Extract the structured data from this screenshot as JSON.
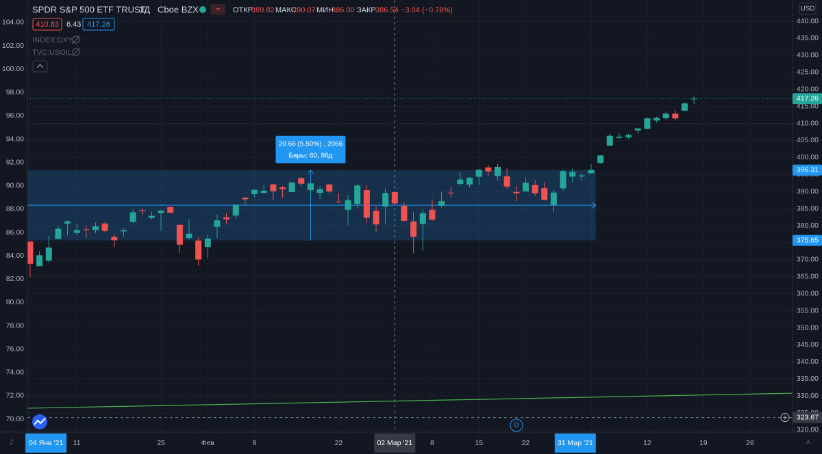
{
  "header": {
    "title": "SPDR S&P 500 ETF TRUST",
    "interval": "1Д",
    "exchange": "Cboe BZX",
    "open_label": "ОТКР",
    "open": "389.82",
    "high_label": "МАКС",
    "high": "390.07",
    "low_label": "МИН",
    "low": "386.00",
    "close_label": "ЗАКР",
    "close": "386.54",
    "change": "−3.04 (−0.78%)",
    "bid": "410.83",
    "spread": "6.43",
    "ask": "417.26",
    "hidden_1": "INDEX:DXY",
    "hidden_2": "TVC:USOIL",
    "currency": "USD",
    "marker": "D",
    "left_corner": "Z",
    "right_corner": "A"
  },
  "chart_data": {
    "type": "candlestick",
    "up_color": "#26a69a",
    "down_color": "#ef5350",
    "open": [
      375.3,
      368.1,
      369.7,
      376.1,
      380.6,
      377.85,
      378.9,
      378.7,
      380.6,
      376.7,
      378.3,
      381.1,
      384.5,
      382.25,
      383.67,
      385.41,
      380.22,
      376.36,
      375.63,
      373.72,
      379.65,
      382.44,
      382.96,
      388.2,
      389.27,
      389.61,
      392.12,
      391.24,
      389.85,
      393.96,
      390.42,
      389.59,
      392.07,
      387.06,
      384.66,
      386.33,
      390.41,
      384.35,
      385.59,
      389.82,
      385.79,
      381.22,
      380.46,
      384.66,
      385.85,
      389.69,
      392.23,
      392.07,
      394.33,
      397.07,
      394.53,
      394.48,
      389.88,
      390.03,
      391.91,
      391.0,
      385.98,
      390.93,
      394.4,
      394.42,
      395.34,
      398.4,
      403.46,
      405.76,
      405.94,
      407.93,
      408.39,
      410.85,
      411.53,
      412.83,
      413.74,
      417.25
    ],
    "high": [
      375.45,
      372.5,
      376.98,
      379.9,
      381.5,
      380.6,
      379.86,
      380.86,
      381.13,
      377.6,
      379.2,
      384.8,
      384.95,
      384.13,
      384.77,
      385.85,
      380.32,
      381.93,
      376.67,
      377.34,
      383.22,
      383.7,
      386.24,
      388.47,
      390.56,
      391.89,
      392.28,
      391.69,
      392.9,
      394.17,
      392.66,
      391.52,
      392.38,
      389.62,
      388.95,
      392.23,
      391.88,
      385.58,
      390.92,
      390.07,
      386.83,
      384.0,
      384.76,
      387.68,
      389.91,
      391.4,
      395.65,
      394.21,
      396.69,
      397.83,
      398.12,
      396.72,
      391.57,
      394.07,
      393.46,
      392.75,
      390.55,
      396.41,
      396.75,
      395.45,
      398.0,
      400.67,
      406.94,
      407.24,
      406.96,
      408.58,
      411.67,
      411.93,
      413.53,
      413.96,
      416.16,
      417.91
    ],
    "low": [
      364.8,
      368.05,
      369.1,
      375.9,
      377.1,
      377.1,
      376.36,
      377.85,
      378.1,
      373.7,
      376.75,
      380.7,
      383.25,
      381.84,
      378.46,
      383.54,
      372.01,
      375.89,
      368.27,
      370.38,
      376.32,
      380.48,
      381.97,
      386.14,
      388.35,
      389.42,
      387.5,
      388.1,
      389.77,
      391.53,
      389.33,
      387.74,
      389.55,
      386.74,
      380.2,
      385.27,
      380.78,
      378.23,
      380.57,
      386.0,
      381.31,
      371.88,
      372.64,
      381.42,
      385.31,
      388.17,
      391.74,
      391.2,
      392.03,
      394.5,
      393.3,
      390.75,
      387.15,
      389.97,
      388.66,
      387.47,
      383.9,
      390.29,
      392.81,
      393.02,
      395.31,
      398.18,
      403.38,
      405.4,
      405.45,
      406.93,
      408.26,
      410.2,
      411.12,
      410.87,
      413.69,
      415.73
    ],
    "close": [
      368.8,
      371.3,
      373.55,
      379.1,
      381.26,
      378.69,
      378.77,
      379.79,
      378.46,
      375.7,
      378.65,
      383.89,
      384.24,
      382.88,
      384.39,
      383.79,
      374.41,
      377.63,
      370.07,
      376.23,
      381.55,
      381.85,
      386.19,
      387.71,
      390.51,
      390.25,
      390.08,
      390.71,
      392.64,
      392.3,
      392.39,
      390.72,
      390.03,
      387.03,
      387.5,
      391.77,
      382.33,
      380.36,
      389.58,
      386.54,
      381.42,
      376.7,
      383.63,
      381.72,
      387.17,
      389.58,
      393.53,
      394.06,
      396.41,
      395.91,
      397.26,
      391.48,
      389.48,
      392.59,
      389.5,
      387.52,
      389.7,
      395.98,
      395.78,
      394.73,
      396.33,
      400.61,
      406.36,
      406.12,
      406.59,
      408.52,
      411.49,
      411.64,
      412.86,
      411.45,
      415.87,
      417.26
    ],
    "xlim": [
      -0.29,
      81.54
    ],
    "xticks": [
      {
        "value": 0,
        "label": "04 Янв '21"
      },
      {
        "value": 5,
        "label": "11"
      },
      {
        "value": 14,
        "label": "25"
      },
      {
        "value": 19,
        "label": "Фев"
      },
      {
        "value": 24,
        "label": "8"
      },
      {
        "value": 33,
        "label": "22"
      },
      {
        "value": 43,
        "label": "8"
      },
      {
        "value": 48,
        "label": "15"
      },
      {
        "value": 53,
        "label": "22"
      },
      {
        "value": 60,
        "label": "31 Мар '21"
      },
      {
        "value": 66,
        "label": "12"
      },
      {
        "value": 72,
        "label": "19"
      },
      {
        "value": 77,
        "label": "26"
      }
    ],
    "ylim": [
      319.39,
      446.22
    ],
    "yticks": [
      {
        "value": 320,
        "label": "320.00"
      },
      {
        "value": 325,
        "label": "325.00"
      },
      {
        "value": 330,
        "label": "330.00"
      },
      {
        "value": 335,
        "label": "335.00"
      },
      {
        "value": 340,
        "label": "340.00"
      },
      {
        "value": 345,
        "label": "345.00"
      },
      {
        "value": 350,
        "label": "350.00"
      },
      {
        "value": 355,
        "label": "355.00"
      },
      {
        "value": 360,
        "label": "360.00"
      },
      {
        "value": 365,
        "label": "365.00"
      },
      {
        "value": 370,
        "label": "370.00"
      },
      {
        "value": 375,
        "label": "375.00"
      },
      {
        "value": 380,
        "label": "380.00"
      },
      {
        "value": 385,
        "label": "385.00"
      },
      {
        "value": 390,
        "label": "390.00"
      },
      {
        "value": 395,
        "label": "395.00"
      },
      {
        "value": 400,
        "label": "400.00"
      },
      {
        "value": 405,
        "label": "405.00"
      },
      {
        "value": 410,
        "label": "410.00"
      },
      {
        "value": 415,
        "label": "415.00"
      },
      {
        "value": 420,
        "label": "420.00"
      },
      {
        "value": 425,
        "label": "425.00"
      },
      {
        "value": 430,
        "label": "430.00"
      },
      {
        "value": 435,
        "label": "435.00"
      },
      {
        "value": 440,
        "label": "440.00"
      }
    ],
    "y2lim": [
      68.89,
      105.93
    ],
    "y2ticks": [
      {
        "value": 70,
        "label": "70.00"
      },
      {
        "value": 72,
        "label": "72.00"
      },
      {
        "value": 74,
        "label": "74.00"
      },
      {
        "value": 76,
        "label": "76.00"
      },
      {
        "value": 78,
        "label": "78.00"
      },
      {
        "value": 80,
        "label": "80.00"
      },
      {
        "value": 82,
        "label": "82.00"
      },
      {
        "value": 84,
        "label": "84.00"
      },
      {
        "value": 86,
        "label": "86.00"
      },
      {
        "value": 88,
        "label": "88.00"
      },
      {
        "value": 90,
        "label": "90.00"
      },
      {
        "value": 92,
        "label": "92.00"
      },
      {
        "value": 94,
        "label": "94.00"
      },
      {
        "value": 96,
        "label": "96.00"
      },
      {
        "value": 98,
        "label": "98.00"
      },
      {
        "value": 100,
        "label": "100.00"
      },
      {
        "value": 102,
        "label": "102.00"
      },
      {
        "value": 104,
        "label": "104.00"
      }
    ],
    "overlay_line": {
      "color": "#4caf50",
      "values": [
        326.4,
        330.8
      ]
    },
    "measure": {
      "from": 375.65,
      "to": 396.31,
      "x_range": [
        0,
        60
      ],
      "label": "20.66 (5.50%) , 2066",
      "bars_label": "Бары: 60, 86д",
      "color": "#2196f3"
    },
    "crosshair": {
      "price": 323.67,
      "index": 39,
      "date_label": "02 Мар '21"
    }
  }
}
